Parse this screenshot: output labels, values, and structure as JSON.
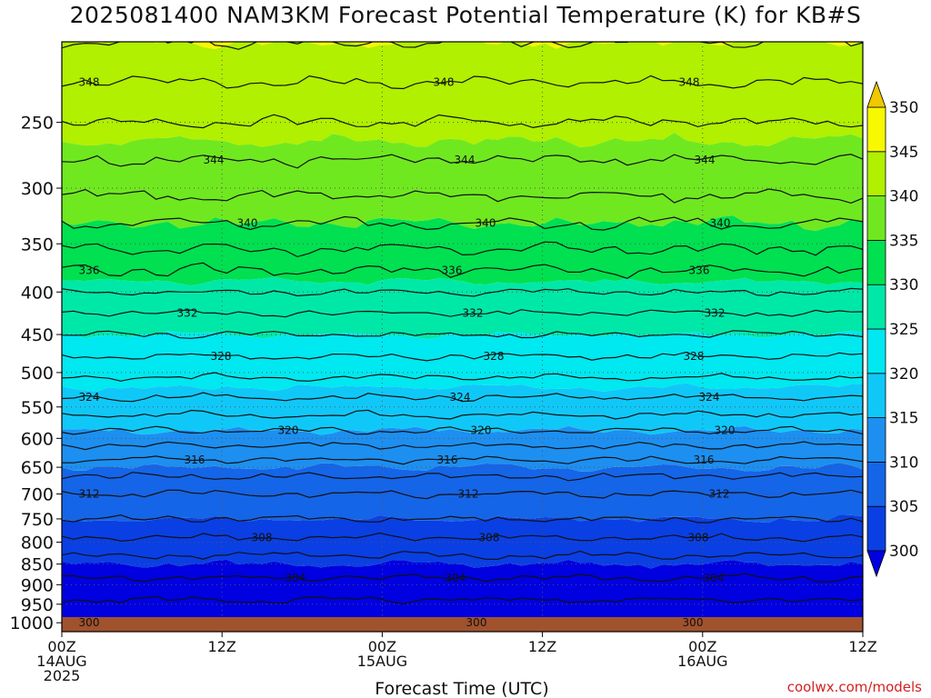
{
  "title": "2025081400 NAM3KM Forecast Potential Temperature (K) for KB#S",
  "footer": "coolwx.com/models",
  "colors": {
    "terrain": "#a0522d",
    "contour": "#111111",
    "levels": [
      "#0000e0",
      "#0a3fe4",
      "#1565e8",
      "#1d8ff0",
      "#10c8f8",
      "#00e8f0",
      "#00e8a8",
      "#00e050",
      "#70e820",
      "#b0f000",
      "#f8f800",
      "#f0c800"
    ]
  },
  "chart_data": {
    "type": "contour",
    "title": "2025081400 NAM3KM Forecast Potential Temperature (K) for KB#S",
    "xlabel": "Forecast Time (UTC)",
    "ylabel": "",
    "x_ticks": [
      {
        "hour": 0,
        "lines": [
          "00Z",
          "14AUG",
          "2025"
        ]
      },
      {
        "hour": 12,
        "lines": [
          "12Z"
        ]
      },
      {
        "hour": 24,
        "lines": [
          "00Z",
          "15AUG"
        ]
      },
      {
        "hour": 36,
        "lines": [
          "12Z"
        ]
      },
      {
        "hour": 48,
        "lines": [
          "00Z",
          "16AUG"
        ]
      },
      {
        "hour": 60,
        "lines": [
          "12Z"
        ]
      }
    ],
    "xlim": [
      0,
      60
    ],
    "y_ticks": [
      250,
      300,
      350,
      400,
      450,
      500,
      550,
      600,
      650,
      700,
      750,
      800,
      850,
      900,
      950,
      1000
    ],
    "ylim": [
      200,
      1025
    ],
    "y_scale": "log-pressure",
    "colorbar": {
      "ticks": [
        300,
        305,
        310,
        315,
        320,
        325,
        330,
        335,
        340,
        345,
        350
      ],
      "min": 300,
      "max": 350,
      "step": 5
    },
    "contour_interval": 2,
    "contour_labels": [
      "348",
      "344",
      "340",
      "336",
      "332",
      "328",
      "324",
      "320",
      "316",
      "312",
      "308",
      "304",
      "300"
    ],
    "theta_profile": [
      {
        "p": 1000,
        "theta": 300
      },
      {
        "p": 975,
        "theta": 300.6
      },
      {
        "p": 950,
        "theta": 301.5
      },
      {
        "p": 925,
        "theta": 302.6
      },
      {
        "p": 900,
        "theta": 303.5
      },
      {
        "p": 850,
        "theta": 305
      },
      {
        "p": 800,
        "theta": 307.5
      },
      {
        "p": 750,
        "theta": 310
      },
      {
        "p": 700,
        "theta": 312
      },
      {
        "p": 650,
        "theta": 315
      },
      {
        "p": 600,
        "theta": 319
      },
      {
        "p": 550,
        "theta": 323
      },
      {
        "p": 500,
        "theta": 326.5
      },
      {
        "p": 450,
        "theta": 330
      },
      {
        "p": 400,
        "theta": 334
      },
      {
        "p": 350,
        "theta": 338.5
      },
      {
        "p": 300,
        "theta": 342.5
      },
      {
        "p": 250,
        "theta": 346
      },
      {
        "p": 200,
        "theta": 350
      }
    ]
  }
}
